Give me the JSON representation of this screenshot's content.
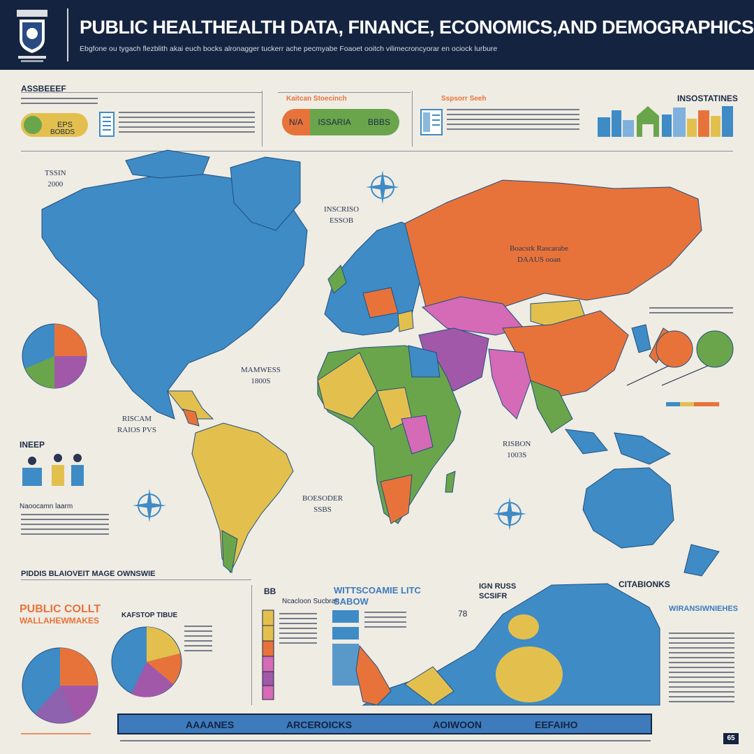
{
  "header": {
    "title": "PUBLIC HEALTHEALTH DATA,  FINANCE,   ECONOMICS,AND DEMOGRAPHICS",
    "subtitle": "Ebgfone ou tygach flezblith akai euch bocks alronagger tuckerr ache pecmyabe Foaoet ooitch vilimecroncyorar en ociock lurbure",
    "crest_icon": "crest-shield-icon"
  },
  "labels": {
    "top_left": "ASSBEEEF",
    "top_center": "Kaitcan Stoecinch",
    "top_center2": "Sspsorr Seeh",
    "top_right": "INSOSTATINES",
    "left_figures": "INEEP",
    "left_notes": "Naoocamn laarm",
    "bottom_left_heading": "PIDDIS BLAIOVEIT MAGE OWNSWIE",
    "bottom_orange_title": "PUBLIC COLLT",
    "bottom_orange_subtitle": "WALLAHEWMAKES",
    "bottom_pie_label": "KAFSTOP TIBUE",
    "bottom_center_title": "WITTSCOAMIE LITC",
    "bottom_center_sub": "SABOW",
    "bottom_center_badge": "BB",
    "bottom_center_col": "Ncacloon Sucbran",
    "bottom_map_label": "IGN RUSS",
    "bottom_map_sub": "SCSIFR",
    "bottom_map_num": "78",
    "bottom_right_title": "CITABIONKS",
    "bottom_right_heading": "WIRANSIWNIEHES",
    "bottom_corner": "65"
  },
  "pills": {
    "left": [
      "EPS",
      "BOBDS"
    ],
    "center": [
      "N/A",
      "ISSARIA",
      "BBBS"
    ]
  },
  "map_labels": [
    {
      "name": "map-label-north-america",
      "line1": "TSSIN",
      "line2": "2000"
    },
    {
      "name": "map-label-north-atlantic",
      "line1": "INSCRISO",
      "line2": "ESSOB"
    },
    {
      "name": "map-label-russia",
      "line1": "Boacsrk Rascarabe",
      "line2": "DAAUS ooan"
    },
    {
      "name": "map-label-central-america",
      "line1": "MAMWESS",
      "line2": "1800S"
    },
    {
      "name": "map-label-south-america",
      "line1": "RISCAM",
      "line2": "RAIOS PVS"
    },
    {
      "name": "map-label-indian-ocean",
      "line1": "RISBON",
      "line2": "1003S"
    },
    {
      "name": "map-label-south-atlantic",
      "line1": "BOESODER",
      "line2": "SSBS"
    }
  ],
  "bottom_tabs": [
    "AAAANES",
    "ARCEROICKS",
    "AOIWOON",
    "EEFAIHO"
  ],
  "colors": {
    "navy": "#14233f",
    "blue": "#3e8bc6",
    "orange": "#e8733a",
    "yellow": "#e3c04e",
    "green": "#6aa54b",
    "purple": "#a258a8",
    "pink": "#d56ab6",
    "background": "#efece4"
  }
}
